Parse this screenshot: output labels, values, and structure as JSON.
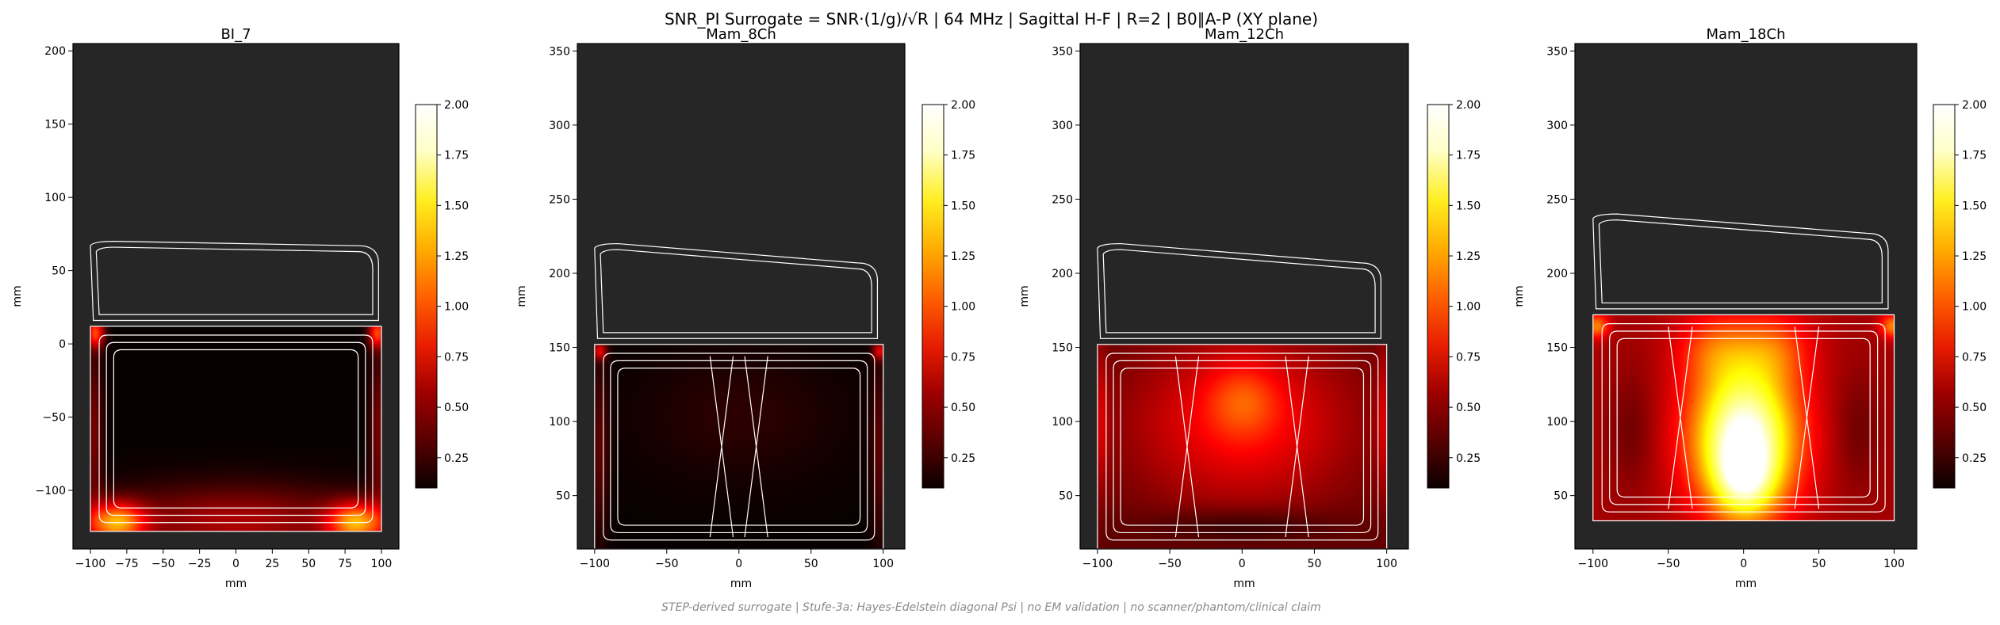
{
  "figure": {
    "suptitle": "SNR_PI Surrogate = SNR·(1/g)/√R | 64 MHz | Sagittal H-F | R=2 | B0∥A-P (XY plane)",
    "footer": "STEP-derived surrogate | Stufe-3a: Hayes-Edelstein diagonal Psi | no EM validation | no scanner/phantom/clinical claim"
  },
  "colors": {
    "background_field": "#262626",
    "coil_outline": "#ffffff",
    "colormap": "hot",
    "colormap_stops": [
      "#0b0000",
      "#560000",
      "#a00000",
      "#e81c00",
      "#ff6200",
      "#ffaa00",
      "#ffee20",
      "#ffffc8",
      "#ffffff"
    ]
  },
  "chart_data": [
    {
      "type": "heatmap",
      "title": "BI_7",
      "xlabel": "mm",
      "ylabel": "mm",
      "xlim": [
        -112,
        112
      ],
      "ylim": [
        -140,
        205
      ],
      "xticks": [
        -100,
        -75,
        -50,
        -25,
        0,
        25,
        50,
        75,
        100
      ],
      "yticks": [
        -100,
        -50,
        0,
        50,
        100,
        150,
        200
      ],
      "colorbar": {
        "range": [
          0.1,
          2.0
        ],
        "ticks": [
          0.25,
          0.5,
          0.75,
          1.0,
          1.25,
          1.5,
          1.75,
          2.0
        ],
        "labels": [
          "0.25",
          "0.50",
          "0.75",
          "1.00",
          "1.25",
          "1.50",
          "1.75",
          "2.00"
        ]
      },
      "field": {
        "x": [
          -100,
          100
        ],
        "y": [
          -128,
          12
        ],
        "base": 0.12
      },
      "hotspots": [
        {
          "x": -83,
          "y": -122,
          "value": 1.0,
          "spread": [
            20,
            14
          ]
        },
        {
          "x": 83,
          "y": -122,
          "value": 1.0,
          "spread": [
            20,
            14
          ]
        },
        {
          "x": 0,
          "y": -122,
          "value": 0.45,
          "spread": [
            90,
            25
          ]
        },
        {
          "x": -97,
          "y": 8,
          "value": 0.8,
          "spread": [
            6,
            10
          ]
        },
        {
          "x": 97,
          "y": 8,
          "value": 0.8,
          "spread": [
            6,
            10
          ]
        },
        {
          "x": -98,
          "y": -60,
          "value": 0.3,
          "spread": [
            6,
            60
          ]
        },
        {
          "x": 98,
          "y": -60,
          "value": 0.3,
          "spread": [
            6,
            60
          ]
        }
      ]
    },
    {
      "type": "heatmap",
      "title": "Mam_8Ch",
      "xlabel": "mm",
      "ylabel": "mm",
      "xlim": [
        -112,
        115
      ],
      "ylim": [
        14,
        355
      ],
      "xticks": [
        -100,
        -50,
        0,
        50,
        100
      ],
      "yticks": [
        50,
        100,
        150,
        200,
        250,
        300,
        350
      ],
      "colorbar": {
        "range": [
          0.1,
          2.0
        ],
        "ticks": [
          0.25,
          0.5,
          0.75,
          1.0,
          1.25,
          1.5,
          1.75,
          2.0
        ],
        "labels": [
          "0.25",
          "0.50",
          "0.75",
          "1.00",
          "1.25",
          "1.50",
          "1.75",
          "2.00"
        ]
      },
      "field": {
        "x": [
          -100,
          100
        ],
        "y": [
          14,
          152
        ],
        "base": 0.12
      },
      "hotspots": [
        {
          "x": 0,
          "y": 105,
          "value": 0.1,
          "spread": [
            70,
            45
          ]
        },
        {
          "x": -97,
          "y": 148,
          "value": 0.55,
          "spread": [
            5,
            6
          ]
        },
        {
          "x": 97,
          "y": 148,
          "value": 0.55,
          "spread": [
            5,
            6
          ]
        },
        {
          "x": -97,
          "y": 80,
          "value": 0.22,
          "spread": [
            6,
            60
          ]
        },
        {
          "x": 97,
          "y": 80,
          "value": 0.22,
          "spread": [
            6,
            60
          ]
        }
      ]
    },
    {
      "type": "heatmap",
      "title": "Mam_12Ch",
      "xlabel": "mm",
      "ylabel": "mm",
      "xlim": [
        -112,
        115
      ],
      "ylim": [
        14,
        355
      ],
      "xticks": [
        -100,
        -50,
        0,
        50,
        100
      ],
      "yticks": [
        50,
        100,
        150,
        200,
        250,
        300,
        350
      ],
      "colorbar": {
        "range": [
          0.1,
          2.0
        ],
        "ticks": [
          0.25,
          0.5,
          0.75,
          1.0,
          1.25,
          1.5,
          1.75,
          2.0
        ],
        "labels": [
          "0.25",
          "0.50",
          "0.75",
          "1.00",
          "1.25",
          "1.50",
          "1.75",
          "2.00"
        ]
      },
      "field": {
        "x": [
          -100,
          100
        ],
        "y": [
          14,
          152
        ],
        "base": 0.35
      },
      "hotspots": [
        {
          "x": 0,
          "y": 100,
          "value": 0.45,
          "spread": [
            80,
            60
          ]
        },
        {
          "x": 0,
          "y": 115,
          "value": 0.3,
          "spread": [
            25,
            25
          ]
        },
        {
          "x": 0,
          "y": 30,
          "value": -0.2,
          "spread": [
            60,
            12
          ]
        },
        {
          "x": -98,
          "y": 100,
          "value": 0.25,
          "spread": [
            5,
            50
          ]
        },
        {
          "x": 98,
          "y": 100,
          "value": 0.25,
          "spread": [
            5,
            50
          ]
        }
      ]
    },
    {
      "type": "heatmap",
      "title": "Mam_18Ch",
      "xlabel": "mm",
      "ylabel": "mm",
      "xlim": [
        -112,
        115
      ],
      "ylim": [
        14,
        355
      ],
      "xticks": [
        -100,
        -50,
        0,
        50,
        100
      ],
      "yticks": [
        50,
        100,
        150,
        200,
        250,
        300,
        350
      ],
      "colorbar": {
        "range": [
          0.1,
          2.0
        ],
        "ticks": [
          0.25,
          0.5,
          0.75,
          1.0,
          1.25,
          1.5,
          1.75,
          2.0
        ],
        "labels": [
          "0.25",
          "0.50",
          "0.75",
          "1.00",
          "1.25",
          "1.50",
          "1.75",
          "2.00"
        ]
      },
      "field": {
        "x": [
          -100,
          100
        ],
        "y": [
          33,
          172
        ],
        "base": 0.55
      },
      "hotspots": [
        {
          "x": 0,
          "y": 90,
          "value": 1.5,
          "spread": [
            35,
            50
          ]
        },
        {
          "x": 0,
          "y": 60,
          "value": 0.6,
          "spread": [
            20,
            25
          ]
        },
        {
          "x": -20,
          "y": 150,
          "value": 0.35,
          "spread": [
            25,
            25
          ]
        },
        {
          "x": 20,
          "y": 150,
          "value": 0.35,
          "spread": [
            25,
            25
          ]
        },
        {
          "x": -98,
          "y": 165,
          "value": 0.6,
          "spread": [
            8,
            8
          ]
        },
        {
          "x": 98,
          "y": 165,
          "value": 0.6,
          "spread": [
            8,
            8
          ]
        },
        {
          "x": -75,
          "y": 95,
          "value": -0.15,
          "spread": [
            15,
            40
          ]
        },
        {
          "x": 75,
          "y": 95,
          "value": -0.15,
          "spread": [
            15,
            40
          ]
        }
      ]
    }
  ]
}
